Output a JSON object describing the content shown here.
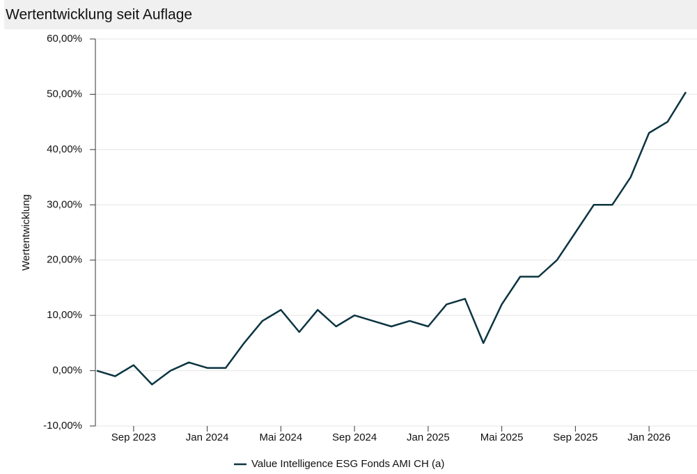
{
  "chart_data": {
    "type": "line",
    "title": "Wertentwicklung seit Auflage",
    "y_label": "Wertentwicklung",
    "x": [
      "2023-07",
      "2023-08",
      "2023-09",
      "2023-10",
      "2023-11",
      "2023-12",
      "2024-01",
      "2024-02",
      "2024-03",
      "2024-04",
      "2024-05",
      "2024-06",
      "2024-07",
      "2024-08",
      "2024-09",
      "2024-10",
      "2024-11",
      "2024-12",
      "2025-01",
      "2025-02",
      "2025-03",
      "2025-04",
      "2025-05",
      "2025-06",
      "2025-07",
      "2025-08",
      "2025-09",
      "2025-10",
      "2025-11",
      "2025-12",
      "2026-01",
      "2026-02",
      "2026-03"
    ],
    "series": [
      {
        "name": "Value Intelligence ESG Fonds AMI CH (a)",
        "color": "#0c3441",
        "values": [
          0,
          -1,
          1,
          -2.5,
          0,
          1.5,
          0.5,
          0.5,
          5,
          9,
          11,
          7,
          11,
          8,
          10,
          9,
          8,
          9,
          8,
          12,
          13,
          5,
          12,
          17,
          17,
          20,
          25,
          30,
          30,
          35,
          43,
          45,
          50.4
        ]
      }
    ],
    "xlim": [
      "2023-07",
      "2026-03"
    ],
    "xticks": [
      {
        "value": "2023-09",
        "label": "Sep 2023"
      },
      {
        "value": "2024-01",
        "label": "Jan 2024"
      },
      {
        "value": "2024-05",
        "label": "Mai 2024"
      },
      {
        "value": "2024-09",
        "label": "Sep 2024"
      },
      {
        "value": "2025-01",
        "label": "Jan 2025"
      },
      {
        "value": "2025-05",
        "label": "Mai 2025"
      },
      {
        "value": "2025-09",
        "label": "Sep 2025"
      },
      {
        "value": "2026-01",
        "label": "Jan 2026"
      }
    ],
    "ylim": [
      -10,
      60
    ],
    "yticks": [
      {
        "value": -10,
        "label": "-10,00%"
      },
      {
        "value": 0,
        "label": "0,00%"
      },
      {
        "value": 10,
        "label": "10,00%"
      },
      {
        "value": 20,
        "label": "20,00%"
      },
      {
        "value": 30,
        "label": "30,00%"
      },
      {
        "value": 40,
        "label": "40,00%"
      },
      {
        "value": 50,
        "label": "50,00%"
      },
      {
        "value": 60,
        "label": "60,00%"
      }
    ],
    "grid": true
  }
}
